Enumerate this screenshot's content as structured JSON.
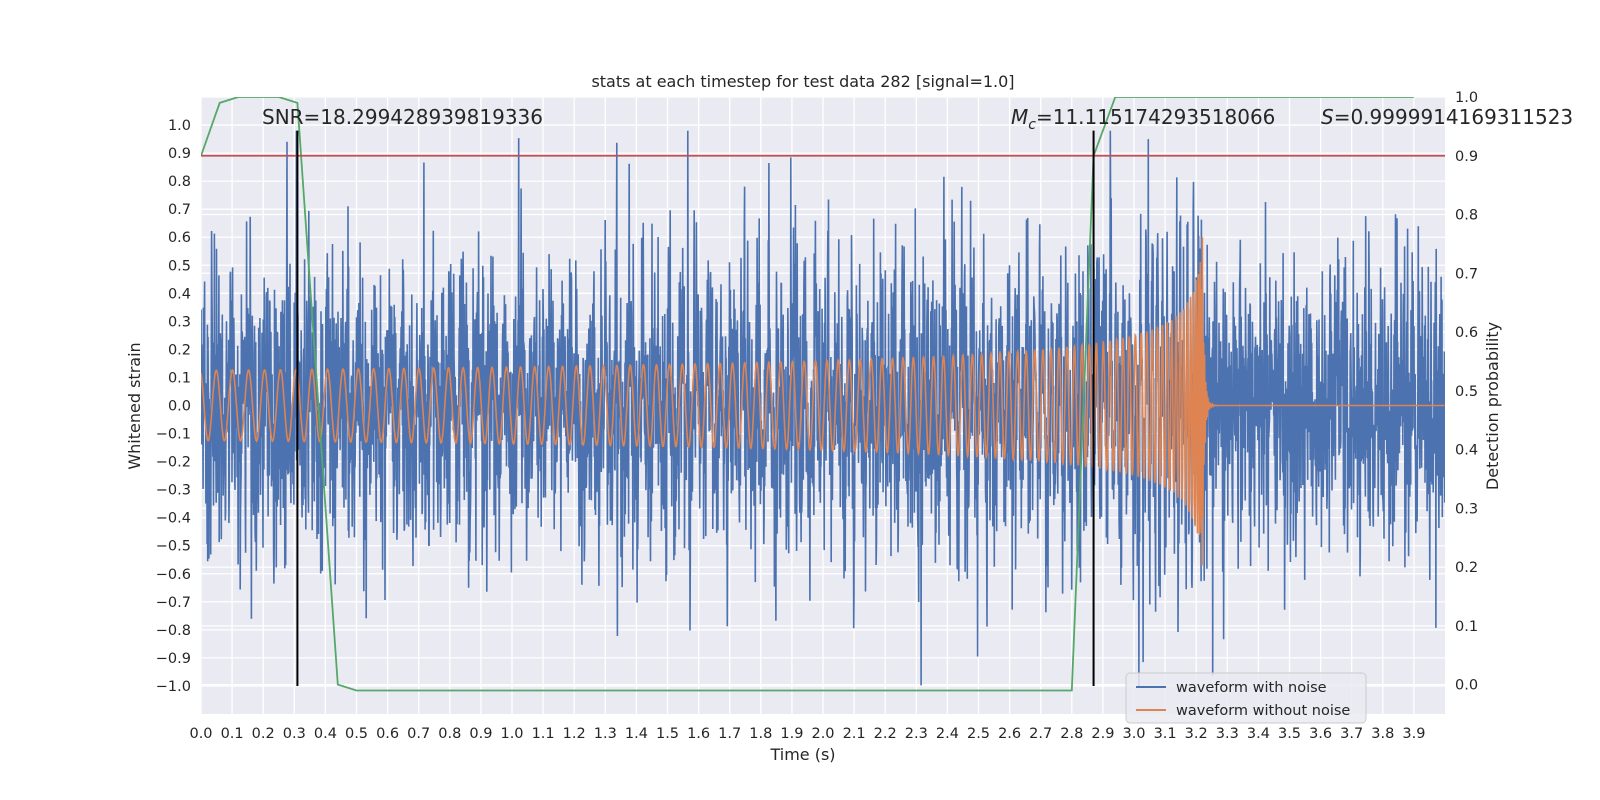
{
  "chart_data": {
    "type": "line",
    "title": "stats at each timestep for test data 282 [signal=1.0]",
    "xlabel": "Time (s)",
    "ylabel": "Whitened strain",
    "y2label": "Detection probability",
    "xlim": [
      0.0,
      4.0
    ],
    "ylim": [
      -1.1,
      1.1
    ],
    "y2lim": [
      -0.05,
      1.0
    ],
    "x_ticks": [
      "0.0",
      "0.1",
      "0.2",
      "0.3",
      "0.4",
      "0.5",
      "0.6",
      "0.7",
      "0.8",
      "0.9",
      "1.0",
      "1.1",
      "1.2",
      "1.3",
      "1.4",
      "1.5",
      "1.6",
      "1.7",
      "1.8",
      "1.9",
      "2.0",
      "2.1",
      "2.2",
      "2.3",
      "2.4",
      "2.5",
      "2.6",
      "2.7",
      "2.8",
      "2.9",
      "3.0",
      "3.1",
      "3.2",
      "3.3",
      "3.4",
      "3.5",
      "3.6",
      "3.7",
      "3.8",
      "3.9"
    ],
    "y_ticks": [
      "1.0",
      "0.9",
      "0.8",
      "0.7",
      "0.6",
      "0.5",
      "0.4",
      "0.3",
      "0.2",
      "0.1",
      "0.0",
      "−0.1",
      "−0.2",
      "−0.3",
      "−0.4",
      "−0.5",
      "−0.6",
      "−0.7",
      "−0.8",
      "−0.9",
      "−1.0"
    ],
    "y2_ticks": [
      "1.0",
      "0.9",
      "0.8",
      "0.7",
      "0.6",
      "0.5",
      "0.4",
      "0.3",
      "0.2",
      "0.1",
      "0.0"
    ],
    "grid": true,
    "legend_position": "lower-right",
    "annotations": {
      "snr_text": "SNR=18.299428939819336",
      "mc_symbol": "M",
      "mc_subscript": "c",
      "mc_value": "=11.115174293518066",
      "s_symbol": "S",
      "s_value": "=0.9999914169311523"
    },
    "vertical_markers_x": [
      0.31,
      2.87
    ],
    "threshold_probability": 0.9,
    "series": [
      {
        "name": "waveform with noise",
        "color": "#4c72b0",
        "kind": "noise",
        "amplitude_range": [
          -1.0,
          0.98
        ]
      },
      {
        "name": "waveform without noise",
        "color": "#dd8452",
        "kind": "chirp",
        "merger_time": 3.22,
        "peak_amplitude": 0.6
      },
      {
        "color": "#55a868",
        "axis": "y2",
        "x": [
          0.0,
          0.06,
          0.12,
          0.2,
          0.25,
          0.31,
          0.44,
          0.5,
          0.7,
          1.0,
          1.5,
          2.0,
          2.5,
          2.8,
          2.87,
          2.94,
          3.0,
          3.5,
          3.9
        ],
        "y": [
          0.9,
          0.99,
          1.0,
          1.0,
          1.0,
          0.99,
          0.0,
          -0.01,
          -0.01,
          -0.01,
          -0.01,
          -0.01,
          -0.01,
          -0.01,
          0.9,
          1.0,
          1.0,
          1.0,
          1.0
        ]
      },
      {
        "color": "#c44e52",
        "axis": "y2",
        "kind": "threshold",
        "y": 0.9
      }
    ]
  }
}
